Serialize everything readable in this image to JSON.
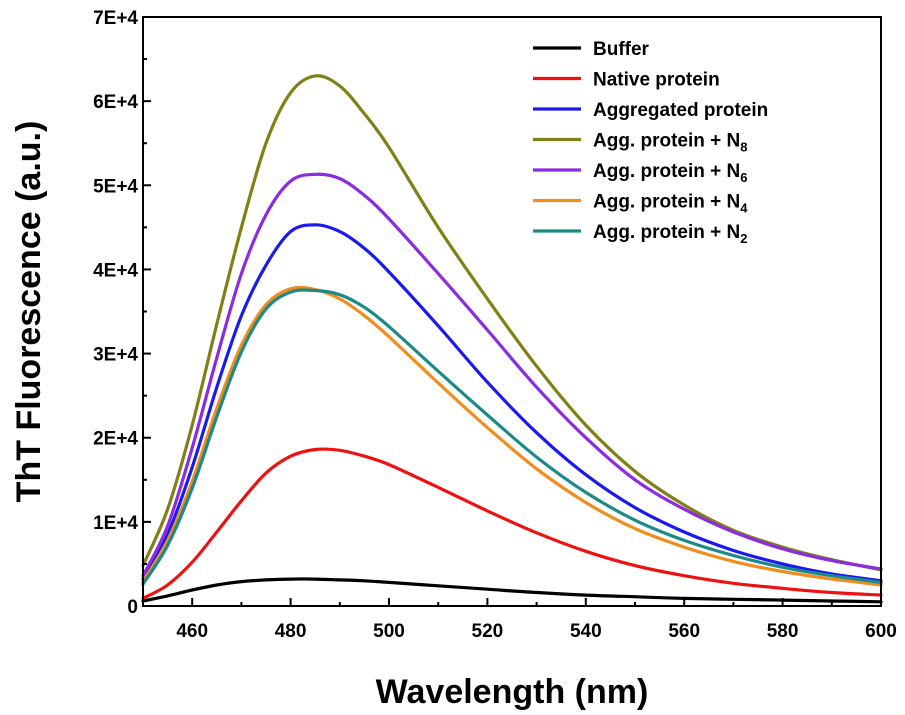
{
  "chart_data": {
    "type": "line",
    "xlabel": "Wavelength (nm)",
    "ylabel": "ThT Fluorescence (a.u.)",
    "xlim": [
      450,
      600
    ],
    "ylim": [
      0,
      70000
    ],
    "x_ticks": [
      460,
      480,
      500,
      520,
      540,
      560,
      580,
      600
    ],
    "x_tick_labels": [
      "460",
      "480",
      "500",
      "520",
      "540",
      "560",
      "580",
      "600"
    ],
    "y_ticks": [
      0,
      10000,
      20000,
      30000,
      40000,
      50000,
      60000,
      70000
    ],
    "y_tick_labels": [
      "0",
      "1E+4",
      "2E+4",
      "3E+4",
      "4E+4",
      "5E+4",
      "6E+4",
      "7E+4"
    ],
    "grid": false,
    "legend_position": "top-right",
    "x": [
      450,
      455,
      460,
      465,
      470,
      475,
      480,
      485,
      490,
      495,
      500,
      510,
      520,
      530,
      540,
      550,
      560,
      570,
      580,
      590,
      600
    ],
    "series": [
      {
        "name": "Buffer",
        "name_sub": "",
        "color": "#000000",
        "values": [
          600,
          1200,
          1900,
          2500,
          2900,
          3100,
          3200,
          3200,
          3100,
          3000,
          2800,
          2400,
          2000,
          1600,
          1300,
          1100,
          900,
          800,
          700,
          600,
          500
        ]
      },
      {
        "name": "Native protein",
        "name_sub": "",
        "color": "#ee1111",
        "values": [
          900,
          2500,
          5200,
          8800,
          12500,
          15800,
          17800,
          18600,
          18500,
          17800,
          16800,
          14100,
          11300,
          8700,
          6500,
          4800,
          3600,
          2700,
          2100,
          1600,
          1300
        ]
      },
      {
        "name": "Aggregated protein",
        "name_sub": "",
        "color": "#1a1aee",
        "values": [
          3200,
          8500,
          16500,
          26000,
          34500,
          40500,
          44500,
          45300,
          44500,
          42500,
          39700,
          33300,
          26600,
          20600,
          15600,
          11700,
          8800,
          6600,
          5000,
          3800,
          3000
        ]
      },
      {
        "name": "Agg. protein + N",
        "name_sub": "8",
        "color": "#808016",
        "values": [
          4800,
          11500,
          21500,
          33500,
          45000,
          55000,
          61000,
          63000,
          61800,
          58500,
          54500,
          45000,
          36500,
          28500,
          21500,
          16000,
          12000,
          9000,
          7000,
          5500,
          4300
        ]
      },
      {
        "name": "Agg. protein + N",
        "name_sub": "6",
        "color": "#8b2be2",
        "values": [
          3600,
          9500,
          18800,
          29500,
          39500,
          46500,
          50500,
          51300,
          50800,
          48800,
          46000,
          39500,
          32800,
          26000,
          20000,
          15000,
          11500,
          8800,
          6800,
          5400,
          4400
        ]
      },
      {
        "name": "Agg. protein + N",
        "name_sub": "4",
        "color": "#f28c1c",
        "values": [
          2900,
          7800,
          14800,
          23500,
          31000,
          35800,
          37700,
          37600,
          36500,
          34500,
          32000,
          26500,
          21200,
          16300,
          12300,
          9200,
          7000,
          5300,
          4100,
          3200,
          2500
        ]
      },
      {
        "name": "Agg. protein + N",
        "name_sub": "2",
        "color": "#1d8a8a",
        "values": [
          2600,
          7200,
          14000,
          22500,
          30200,
          35300,
          37300,
          37500,
          37000,
          35500,
          33200,
          27900,
          22700,
          17700,
          13500,
          10200,
          7800,
          6000,
          4600,
          3600,
          2800
        ]
      }
    ]
  }
}
